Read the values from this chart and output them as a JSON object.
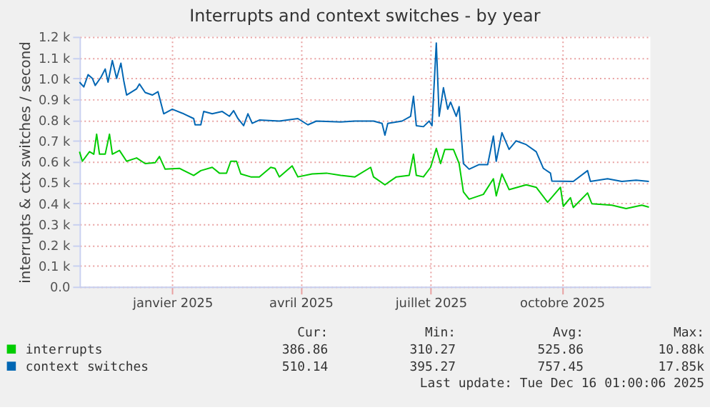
{
  "chart_data": {
    "type": "line",
    "title": "Interrupts and context switches - by year",
    "ylabel": "interrupts & ctx switches / second",
    "xlim": [
      "2024-10-28",
      "2025-12-02"
    ],
    "xticks": [
      {
        "value": "2025-01-01",
        "label": "janvier 2025"
      },
      {
        "value": "2025-04-01",
        "label": "avril 2025"
      },
      {
        "value": "2025-07-01",
        "label": "juillet 2025"
      },
      {
        "value": "2025-10-01",
        "label": "octobre 2025"
      }
    ],
    "ylim": [
      0,
      1200
    ],
    "yticks": [
      {
        "value": 0,
        "label": "0.0"
      },
      {
        "value": 100,
        "label": "0.1 k"
      },
      {
        "value": 200,
        "label": "0.2 k"
      },
      {
        "value": 300,
        "label": "0.3 k"
      },
      {
        "value": 400,
        "label": "0.4 k"
      },
      {
        "value": 500,
        "label": "0.5 k"
      },
      {
        "value": 600,
        "label": "0.6 k"
      },
      {
        "value": 700,
        "label": "0.7 k"
      },
      {
        "value": 800,
        "label": "0.8 k"
      },
      {
        "value": 900,
        "label": "0.9 k"
      },
      {
        "value": 1000,
        "label": "1.0 k"
      },
      {
        "value": 1100,
        "label": "1.1 k"
      },
      {
        "value": 1200,
        "label": "1.2 k"
      }
    ],
    "grid": true,
    "legend": "bottom",
    "marker": "none",
    "line_style": "solid",
    "series": [
      {
        "name": "interrupts",
        "color": "#00cc00",
        "x": [
          "2024-10-28",
          "2024-10-30",
          "2024-11-04",
          "2024-11-07",
          "2024-11-09",
          "2024-11-11",
          "2024-11-15",
          "2024-11-18",
          "2024-11-20",
          "2024-11-25",
          "2024-11-30",
          "2024-12-07",
          "2024-12-13",
          "2024-12-20",
          "2024-12-23",
          "2024-12-27",
          "2025-01-06",
          "2025-01-16",
          "2025-01-21",
          "2025-01-29",
          "2025-02-03",
          "2025-02-08",
          "2025-02-11",
          "2025-02-15",
          "2025-02-18",
          "2025-02-25",
          "2025-03-03",
          "2025-03-11",
          "2025-03-14",
          "2025-03-17",
          "2025-03-26",
          "2025-03-30",
          "2025-04-09",
          "2025-04-19",
          "2025-04-29",
          "2025-05-09",
          "2025-05-20",
          "2025-05-22",
          "2025-05-30",
          "2025-06-07",
          "2025-06-16",
          "2025-06-19",
          "2025-06-21",
          "2025-06-26",
          "2025-07-01",
          "2025-07-05",
          "2025-07-08",
          "2025-07-11",
          "2025-07-17",
          "2025-07-21",
          "2025-07-24",
          "2025-07-28",
          "2025-08-07",
          "2025-08-14",
          "2025-08-16",
          "2025-08-20",
          "2025-08-25",
          "2025-09-06",
          "2025-09-13",
          "2025-09-21",
          "2025-09-30",
          "2025-10-02",
          "2025-10-07",
          "2025-10-09",
          "2025-10-19",
          "2025-10-22",
          "2025-11-05",
          "2025-11-15",
          "2025-11-26",
          "2025-12-01"
        ],
        "values": [
          648,
          602,
          648,
          636,
          732,
          636,
          636,
          732,
          636,
          654,
          602,
          618,
          591,
          595,
          625,
          564,
          568,
          534,
          557,
          573,
          545,
          545,
          602,
          602,
          541,
          527,
          527,
          573,
          568,
          527,
          580,
          527,
          541,
          545,
          534,
          527,
          573,
          527,
          489,
          527,
          534,
          636,
          534,
          527,
          573,
          664,
          591,
          659,
          659,
          591,
          455,
          420,
          443,
          518,
          436,
          541,
          466,
          489,
          477,
          405,
          477,
          386,
          427,
          380,
          450,
          398,
          391,
          375,
          391,
          382
        ]
      },
      {
        "name": "context switches",
        "color": "#0066b3",
        "x": [
          "2024-10-28",
          "2024-10-31",
          "2024-11-03",
          "2024-11-06",
          "2024-11-08",
          "2024-11-12",
          "2024-11-15",
          "2024-11-17",
          "2024-11-20",
          "2024-11-23",
          "2024-11-26",
          "2024-11-28",
          "2024-11-30",
          "2024-12-07",
          "2024-12-09",
          "2024-12-13",
          "2024-12-18",
          "2024-12-22",
          "2024-12-26",
          "2025-01-01",
          "2025-01-09",
          "2025-01-16",
          "2025-01-17",
          "2025-01-21",
          "2025-01-23",
          "2025-01-29",
          "2025-02-05",
          "2025-02-10",
          "2025-02-13",
          "2025-02-16",
          "2025-02-20",
          "2025-02-23",
          "2025-02-26",
          "2025-03-03",
          "2025-03-17",
          "2025-03-30",
          "2025-04-06",
          "2025-04-12",
          "2025-04-29",
          "2025-05-09",
          "2025-05-22",
          "2025-05-28",
          "2025-05-30",
          "2025-06-01",
          "2025-06-11",
          "2025-06-17",
          "2025-06-19",
          "2025-06-21",
          "2025-06-26",
          "2025-06-30",
          "2025-07-02",
          "2025-07-05",
          "2025-07-07",
          "2025-07-10",
          "2025-07-13",
          "2025-07-15",
          "2025-07-19",
          "2025-07-21",
          "2025-07-24",
          "2025-07-28",
          "2025-08-04",
          "2025-08-10",
          "2025-08-14",
          "2025-08-16",
          "2025-08-20",
          "2025-08-25",
          "2025-08-30",
          "2025-09-06",
          "2025-09-13",
          "2025-09-18",
          "2025-09-23",
          "2025-09-24",
          "2025-10-09",
          "2025-10-19",
          "2025-10-21",
          "2025-11-02",
          "2025-11-12",
          "2025-11-22",
          "2025-12-01"
        ],
        "values": [
          982,
          959,
          1018,
          1000,
          966,
          1005,
          1045,
          982,
          1086,
          1000,
          1073,
          989,
          920,
          950,
          973,
          932,
          920,
          936,
          830,
          852,
          830,
          807,
          777,
          777,
          841,
          830,
          841,
          818,
          845,
          807,
          773,
          830,
          784,
          800,
          795,
          807,
          777,
          795,
          791,
          795,
          795,
          784,
          727,
          784,
          795,
          818,
          914,
          773,
          768,
          795,
          773,
          1170,
          818,
          955,
          852,
          886,
          818,
          864,
          591,
          564,
          586,
          586,
          723,
          602,
          739,
          659,
          700,
          682,
          648,
          568,
          545,
          507,
          505,
          557,
          505,
          518,
          505,
          511,
          505
        ]
      }
    ],
    "annotations": [
      "Cur:",
      "Min:",
      "Avg:",
      "Max:",
      "386.86",
      "310.27",
      "525.86",
      "10.88k",
      "510.14",
      "395.27",
      "757.45",
      "17.85k",
      "Last update: Tue Dec 16 01:00:06 2025"
    ]
  }
}
